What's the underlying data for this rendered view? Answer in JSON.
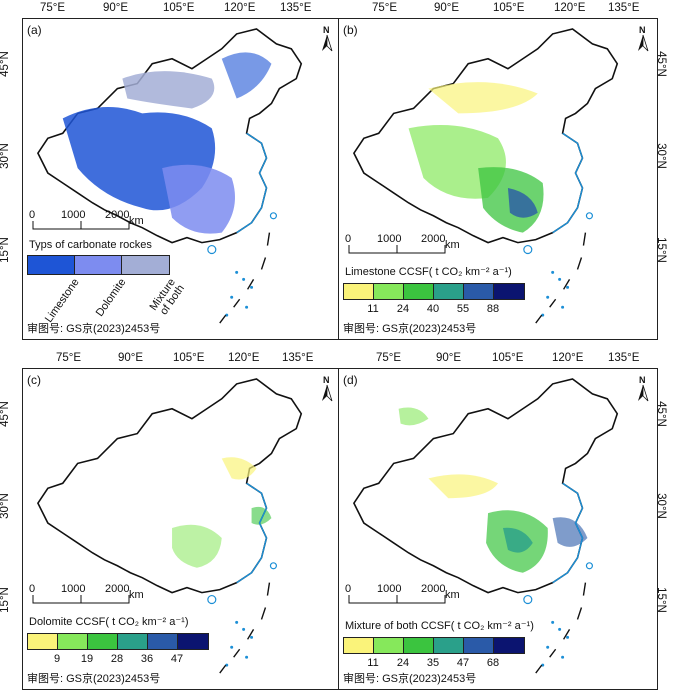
{
  "longitude_labels": [
    "75°E",
    "90°E",
    "105°E",
    "120°E",
    "135°E"
  ],
  "latitude_labels": [
    "45°N",
    "30°N",
    "15°N"
  ],
  "north_label": "N",
  "scale": {
    "ticks": [
      "0",
      "1000",
      "2000"
    ],
    "unit": "km"
  },
  "credit": "审图号: GS京(2023)2453号",
  "colors": {
    "limestone": "#1e55d6",
    "dolomite": "#7d8cf0",
    "mixture": "#a3aed6",
    "ccsf": [
      "#faf37a",
      "#86e85b",
      "#3bc43f",
      "#2aa08a",
      "#2a5aa8",
      "#0b1470"
    ],
    "coast": "#1c8fd6",
    "boundary": "#111111"
  },
  "panels": [
    {
      "id": "a",
      "label": "(a)",
      "legend_title": "Typs of carbonate rockes",
      "rock_types": [
        "Limestone",
        "Dolomite",
        "Mixture of both"
      ]
    },
    {
      "id": "b",
      "label": "(b)",
      "legend_title": "Limestone CCSF( t CO₂ km⁻² a⁻¹)",
      "breaks": [
        "11",
        "24",
        "40",
        "55",
        "88"
      ]
    },
    {
      "id": "c",
      "label": "(c)",
      "legend_title": "Dolomite CCSF( t CO₂ km⁻² a⁻¹)",
      "breaks": [
        "9",
        "19",
        "28",
        "36",
        "47"
      ]
    },
    {
      "id": "d",
      "label": "(d)",
      "legend_title": "Mixture of both CCSF( t CO₂ km⁻² a⁻¹)",
      "breaks": [
        "11",
        "24",
        "35",
        "47",
        "68"
      ]
    }
  ]
}
